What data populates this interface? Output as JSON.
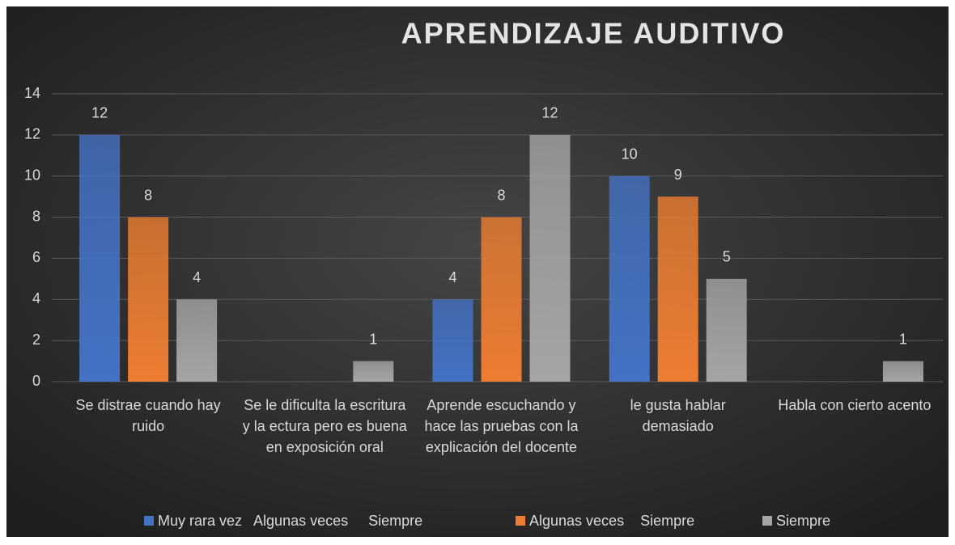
{
  "chart_data": {
    "type": "bar",
    "title": "APRENDIZAJE AUDITIVO",
    "categories": [
      "Se distrae cuando hay ruido",
      "Se le dificulta la escritura y la ectura pero es buena en exposición oral",
      "Aprende escuchando y hace las pruebas con la explicación del docente",
      "le gusta hablar demasiado",
      "Habla con cierto acento"
    ],
    "series": [
      {
        "name": "Muy rara vez   Algunas veces     Siempre",
        "color": "#4472c4",
        "values": [
          12,
          null,
          4,
          10,
          null
        ]
      },
      {
        "name": "Algunas veces    Siempre",
        "color": "#ed7d31",
        "values": [
          8,
          null,
          8,
          9,
          null
        ]
      },
      {
        "name": "Siempre",
        "color": "#a5a5a5",
        "values": [
          4,
          1,
          12,
          5,
          1
        ]
      }
    ],
    "ylim": [
      0,
      14
    ],
    "yticks": [
      0,
      2,
      4,
      6,
      8,
      10,
      12,
      14
    ],
    "grid": true,
    "legend": "bottom"
  }
}
